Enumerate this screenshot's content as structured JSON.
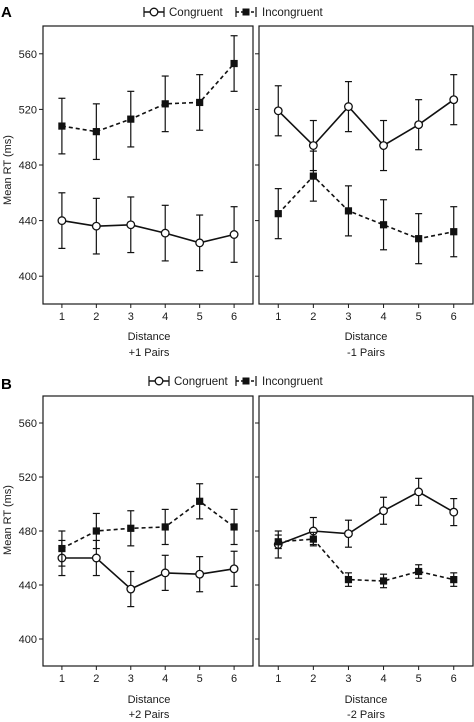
{
  "figure": {
    "panels": [
      {
        "letter": "A",
        "legend": {
          "congruent": "Congruent",
          "incongruent": "Incongruent"
        },
        "ylabel": "Mean RT (ms)"
      },
      {
        "letter": "B",
        "legend": {
          "congruent": "Congruent",
          "incongruent": "Incongruent"
        },
        "ylabel": "Mean RT (ms)"
      }
    ]
  },
  "colors": {
    "axis": "#1a1a1a",
    "line": "#111111",
    "background": "#ffffff"
  },
  "chart_data": [
    {
      "panel": "A",
      "type": "line",
      "ylim": [
        380,
        580
      ],
      "yticks": [
        400,
        440,
        480,
        520,
        560
      ],
      "ylabel": "Mean RT (ms)",
      "subplots": [
        {
          "x": [
            1,
            2,
            3,
            4,
            5,
            6
          ],
          "xlabel_line1": "Distance",
          "xlabel_line2": "+1 Pairs",
          "series": [
            {
              "name": "Congruent",
              "marker": "open-circle",
              "dash": "solid",
              "values": [
                440,
                436,
                437,
                431,
                424,
                430
              ],
              "err": [
                20,
                20,
                20,
                20,
                20,
                20
              ]
            },
            {
              "name": "Incongruent",
              "marker": "filled-square",
              "dash": "dashed",
              "values": [
                508,
                504,
                513,
                524,
                525,
                553
              ],
              "err": [
                20,
                20,
                20,
                20,
                20,
                20
              ]
            }
          ]
        },
        {
          "x": [
            1,
            2,
            3,
            4,
            5,
            6
          ],
          "xlabel_line1": "Distance",
          "xlabel_line2": "-1 Pairs",
          "series": [
            {
              "name": "Congruent",
              "marker": "open-circle",
              "dash": "solid",
              "values": [
                519,
                494,
                522,
                494,
                509,
                527
              ],
              "err": [
                18,
                18,
                18,
                18,
                18,
                18
              ]
            },
            {
              "name": "Incongruent",
              "marker": "filled-square",
              "dash": "dashed",
              "values": [
                445,
                472,
                447,
                437,
                427,
                432
              ],
              "err": [
                18,
                18,
                18,
                18,
                18,
                18
              ]
            }
          ]
        }
      ]
    },
    {
      "panel": "B",
      "type": "line",
      "ylim": [
        380,
        580
      ],
      "yticks": [
        400,
        440,
        480,
        520,
        560
      ],
      "ylabel": "Mean RT (ms)",
      "subplots": [
        {
          "x": [
            1,
            2,
            3,
            4,
            5,
            6
          ],
          "xlabel_line1": "Distance",
          "xlabel_line2": "+2 Pairs",
          "series": [
            {
              "name": "Congruent",
              "marker": "open-circle",
              "dash": "solid",
              "values": [
                460,
                460,
                437,
                449,
                448,
                452
              ],
              "err": [
                13,
                13,
                13,
                13,
                13,
                13
              ]
            },
            {
              "name": "Incongruent",
              "marker": "filled-square",
              "dash": "dashed",
              "values": [
                467,
                480,
                482,
                483,
                502,
                483
              ],
              "err": [
                13,
                13,
                13,
                13,
                13,
                13
              ]
            }
          ]
        },
        {
          "x": [
            1,
            2,
            3,
            4,
            5,
            6
          ],
          "xlabel_line1": "Distance",
          "xlabel_line2": "-2 Pairs",
          "series": [
            {
              "name": "Congruent",
              "marker": "open-circle",
              "dash": "solid",
              "values": [
                470,
                480,
                478,
                495,
                509,
                494
              ],
              "err": [
                10,
                10,
                10,
                10,
                10,
                10
              ]
            },
            {
              "name": "Incongruent",
              "marker": "filled-square",
              "dash": "dashed",
              "values": [
                472,
                474,
                444,
                443,
                450,
                444
              ],
              "err": [
                5,
                5,
                5,
                5,
                5,
                5
              ]
            }
          ]
        }
      ]
    }
  ]
}
